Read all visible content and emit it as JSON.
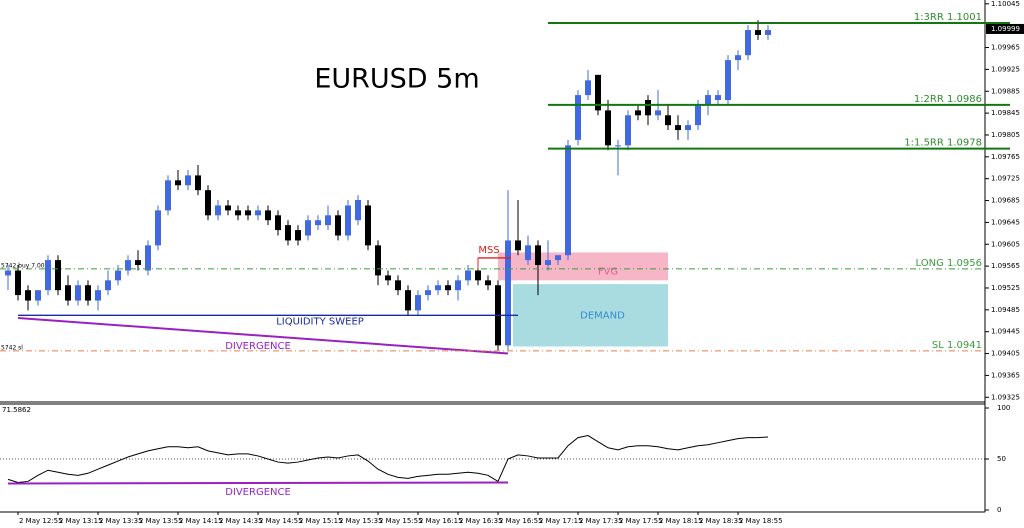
{
  "chart_data": {
    "type": "candlestick",
    "title": "EURUSD 5m",
    "categories": [
      null,
      "2 May 12:55",
      null,
      null,
      null,
      "2 May 13:15",
      null,
      null,
      null,
      "2 May 13:35",
      null,
      null,
      null,
      "2 May 13:55",
      null,
      null,
      null,
      "2 May 14:15",
      null,
      null,
      null,
      "2 May 14:35",
      null,
      null,
      null,
      "2 May 14:55",
      null,
      null,
      null,
      "2 May 15:15",
      null,
      null,
      null,
      "2 May 15:35",
      null,
      null,
      null,
      "2 May 15:55",
      null,
      null,
      null,
      "2 May 16:15",
      null,
      null,
      null,
      "2 May 16:35",
      null,
      null,
      null,
      "2 May 16:55",
      null,
      null,
      null,
      "2 May 17:15",
      null,
      null,
      null,
      "2 May 17:35",
      null,
      null,
      null,
      "2 May 17:55",
      null,
      null,
      null,
      "2 May 18:15",
      null,
      null,
      null,
      "2 May 18:35",
      null,
      null,
      null,
      "2 May 18:55",
      null,
      null,
      null
    ],
    "ohlc": [
      [
        1.09548,
        1.09567,
        1.09521,
        1.09557
      ],
      [
        1.09557,
        1.09567,
        1.09502,
        1.09512
      ],
      [
        1.09521,
        1.0953,
        1.09484,
        1.09502
      ],
      [
        1.09502,
        1.09521,
        1.09493,
        1.09521
      ],
      [
        1.09521,
        1.09585,
        1.09512,
        1.09576
      ],
      [
        1.09576,
        1.09585,
        1.09512,
        1.09521
      ],
      [
        1.0953,
        1.09548,
        1.09493,
        1.09502
      ],
      [
        1.09502,
        1.09539,
        1.09493,
        1.0953
      ],
      [
        1.0953,
        1.09539,
        1.09493,
        1.09502
      ],
      [
        1.09502,
        1.0953,
        1.09484,
        1.09521
      ],
      [
        1.09521,
        1.09557,
        1.09512,
        1.09539
      ],
      [
        1.09539,
        1.09567,
        1.0953,
        1.09557
      ],
      [
        1.09557,
        1.09585,
        1.09548,
        1.09576
      ],
      [
        1.09576,
        1.09594,
        1.09557,
        1.09567
      ],
      [
        1.09557,
        1.09612,
        1.09548,
        1.09603
      ],
      [
        1.09603,
        1.09676,
        1.09594,
        1.09667
      ],
      [
        1.09667,
        1.09731,
        1.09658,
        1.09722
      ],
      [
        1.09722,
        1.09741,
        1.09704,
        1.09713
      ],
      [
        1.09713,
        1.09741,
        1.09704,
        1.09731
      ],
      [
        1.09731,
        1.0975,
        1.09695,
        1.09704
      ],
      [
        1.09704,
        1.09713,
        1.09649,
        1.09658
      ],
      [
        1.09658,
        1.09686,
        1.09649,
        1.09676
      ],
      [
        1.09676,
        1.09686,
        1.09658,
        1.09667
      ],
      [
        1.09667,
        1.09676,
        1.09649,
        1.09658
      ],
      [
        1.09667,
        1.09676,
        1.09649,
        1.09658
      ],
      [
        1.09658,
        1.09676,
        1.09649,
        1.09667
      ],
      [
        1.09667,
        1.09676,
        1.0964,
        1.09649
      ],
      [
        1.09658,
        1.09667,
        1.09621,
        1.09631
      ],
      [
        1.0964,
        1.09649,
        1.09603,
        1.09612
      ],
      [
        1.09631,
        1.0964,
        1.09603,
        1.09612
      ],
      [
        1.09621,
        1.09658,
        1.09612,
        1.09649
      ],
      [
        1.0964,
        1.09658,
        1.09631,
        1.09649
      ],
      [
        1.0964,
        1.09676,
        1.09631,
        1.09658
      ],
      [
        1.09658,
        1.09667,
        1.09612,
        1.09621
      ],
      [
        1.09621,
        1.09686,
        1.09612,
        1.09676
      ],
      [
        1.09649,
        1.09695,
        1.0964,
        1.09686
      ],
      [
        1.09676,
        1.09686,
        1.09594,
        1.09603
      ],
      [
        1.09603,
        1.09612,
        1.0953,
        1.09548
      ],
      [
        1.09548,
        1.09557,
        1.0953,
        1.09539
      ],
      [
        1.09539,
        1.09548,
        1.09512,
        1.09521
      ],
      [
        1.09521,
        1.0953,
        1.09475,
        1.09484
      ],
      [
        1.09484,
        1.09521,
        1.09475,
        1.09512
      ],
      [
        1.09512,
        1.0953,
        1.09502,
        1.09521
      ],
      [
        1.09521,
        1.09539,
        1.09512,
        1.0953
      ],
      [
        1.0953,
        1.09539,
        1.09512,
        1.09521
      ],
      [
        1.09521,
        1.09548,
        1.09502,
        1.09539
      ],
      [
        1.09539,
        1.09567,
        1.0953,
        1.09557
      ],
      [
        1.09557,
        1.09567,
        1.0953,
        1.09539
      ],
      [
        1.09539,
        1.09548,
        1.09521,
        1.0953
      ],
      [
        1.0953,
        1.09539,
        1.09411,
        1.0942
      ],
      [
        1.0942,
        1.09704,
        1.09411,
        1.09612
      ],
      [
        1.09612,
        1.09686,
        1.09585,
        1.09594
      ],
      [
        1.09576,
        1.09621,
        1.09567,
        1.09603
      ],
      [
        1.09603,
        1.09612,
        1.09512,
        1.09567
      ],
      [
        1.09567,
        1.09612,
        1.09557,
        1.09576
      ],
      [
        1.09576,
        1.09585,
        1.09567,
        1.09585
      ],
      [
        1.09585,
        1.09796,
        1.09576,
        1.09786
      ],
      [
        1.09796,
        1.09887,
        1.09786,
        1.09878
      ],
      [
        1.09878,
        1.09924,
        1.09869,
        1.09905
      ],
      [
        1.09915,
        1.09915,
        1.09841,
        1.0985
      ],
      [
        1.0985,
        1.09869,
        1.09777,
        1.09786
      ],
      [
        1.09786,
        1.09796,
        1.09731,
        1.09786
      ],
      [
        1.09786,
        1.0985,
        1.09777,
        1.09841
      ],
      [
        1.0985,
        1.0986,
        1.09832,
        1.09841
      ],
      [
        1.09869,
        1.09878,
        1.09823,
        1.09841
      ],
      [
        1.09841,
        1.09887,
        1.09832,
        1.0985
      ],
      [
        1.09841,
        1.0986,
        1.09814,
        1.09823
      ],
      [
        1.09823,
        1.09841,
        1.09796,
        1.09814
      ],
      [
        1.09814,
        1.09832,
        1.09796,
        1.09823
      ],
      [
        1.09823,
        1.09869,
        1.09814,
        1.0986
      ],
      [
        1.0986,
        1.09887,
        1.09841,
        1.09878
      ],
      [
        1.09869,
        1.09887,
        1.0986,
        1.09878
      ],
      [
        1.09869,
        1.09951,
        1.0986,
        1.09942
      ],
      [
        1.09942,
        1.0996,
        1.09924,
        1.09951
      ],
      [
        1.09951,
        1.10006,
        1.09942,
        1.09997
      ],
      [
        1.09997,
        1.10015,
        1.09979,
        1.09988
      ],
      [
        1.09988,
        1.10006,
        1.09979,
        1.09997
      ]
    ],
    "bull_color": "#4169e1",
    "bear_color": "#000000",
    "ylim": [
      1.0932,
      1.10052
    ],
    "yticks": [
      1.10045,
      1.09965,
      1.09925,
      1.09885,
      1.09845,
      1.09805,
      1.09765,
      1.09725,
      1.09685,
      1.09645,
      1.09605,
      1.09565,
      1.09525,
      1.09485,
      1.09445,
      1.09405,
      1.09365,
      1.09325
    ],
    "current_price": 1.09999,
    "levels": [
      {
        "label": "1:3RR 1.1001",
        "value": 1.1001,
        "color": "#117711",
        "style": "solid",
        "start": 54
      },
      {
        "label": "1:2RR 1.0986",
        "value": 1.0986,
        "color": "#117711",
        "style": "solid",
        "start": 54
      },
      {
        "label": "1:1.5RR 1.0978",
        "value": 1.0978,
        "color": "#117711",
        "style": "solid",
        "start": 54
      },
      {
        "label": "LONG 1.0956",
        "value": 1.0956,
        "color": "#3c9a3c",
        "style": "dashdot",
        "order_label": "5742 buy 7.00"
      },
      {
        "label": "SL 1.0941",
        "value": 1.0941,
        "color": "#e8804a",
        "style": "dashdot",
        "order_label": "5742 sl"
      }
    ],
    "zones": [
      {
        "label": "FVG",
        "x": [
          49,
          66
        ],
        "y": [
          1.09539,
          1.0959
        ],
        "color": "#f6b6c8",
        "text_color": "#e0608a"
      },
      {
        "label": "DEMAND",
        "x": [
          50.5,
          66
        ],
        "y": [
          1.09418,
          1.09532
        ],
        "color": "#a8dce0",
        "text_color": "#3a8ad0"
      }
    ],
    "annotations": [
      {
        "label": "MSS",
        "x": [
          47,
          50.3
        ],
        "y": [
          1.0958,
          1.0958
        ],
        "color": "#e02020"
      },
      {
        "label": "LIQUIDITY SWEEP",
        "x": [
          1,
          51
        ],
        "y": [
          1.09475,
          1.09475
        ],
        "color": "#1a2aa0"
      },
      {
        "label": "DIVERGENCE",
        "x": [
          1,
          50
        ],
        "y": [
          1.0947,
          1.09405
        ],
        "color": "#9a20c0"
      }
    ],
    "indicator": {
      "ylim": [
        0,
        100
      ],
      "yticks": [
        0,
        50,
        100
      ],
      "reference": 50,
      "color": "#000000",
      "values": [
        30,
        27,
        28,
        34,
        39,
        37,
        35,
        34,
        36,
        40,
        44,
        48,
        52,
        55,
        58,
        60,
        62,
        62,
        61,
        62,
        58,
        56,
        54,
        55,
        55,
        53,
        50,
        47,
        46,
        47,
        49,
        51,
        52,
        51,
        53,
        54,
        48,
        40,
        35,
        32,
        31,
        33,
        34,
        35,
        35,
        36,
        37,
        36,
        34,
        28,
        50,
        54,
        53,
        51,
        51,
        51,
        63,
        71,
        73,
        67,
        61,
        59,
        62,
        63,
        63,
        62,
        60,
        59,
        61,
        63,
        64,
        66,
        68,
        70,
        71,
        71,
        71.5862
      ],
      "annotations": [
        {
          "label": "DIVERGENCE",
          "x": [
            0,
            50
          ],
          "y": [
            27,
            27
          ],
          "color": "#9a20c0"
        }
      ]
    }
  }
}
